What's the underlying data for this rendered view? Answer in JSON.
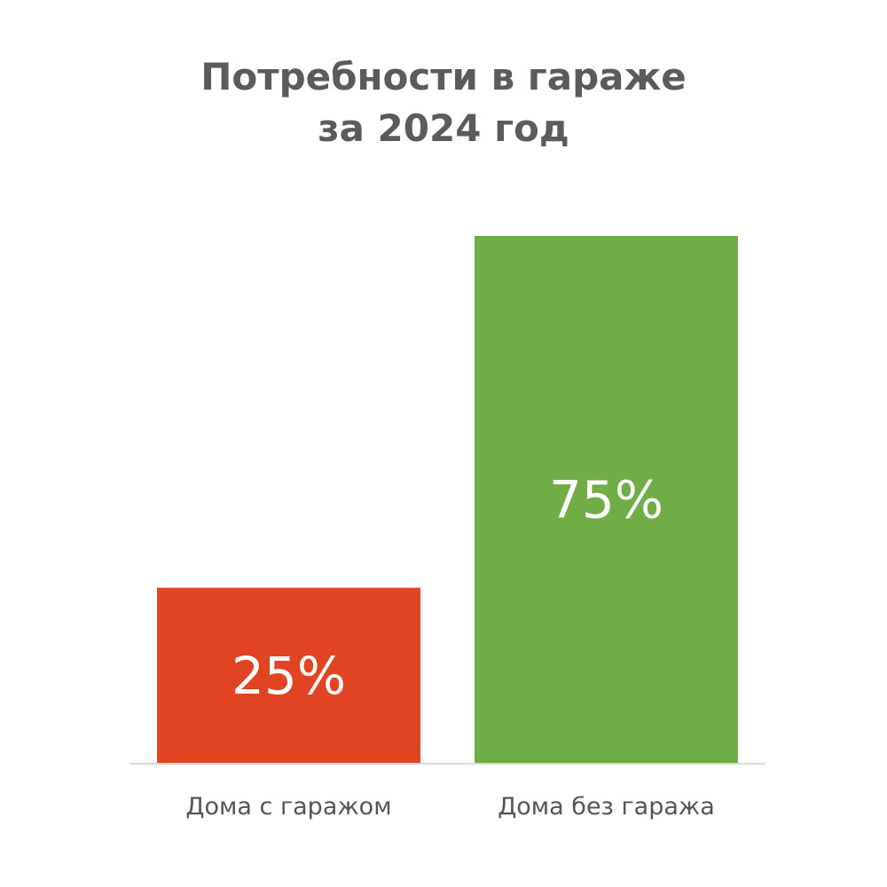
{
  "chart_data": {
    "type": "bar",
    "title": "Потребности в гараже за 2024 год",
    "title_lines": [
      "Потребности в гараже",
      "за 2024 год"
    ],
    "categories": [
      "Дома с гаражом",
      "Дома без гаража"
    ],
    "values": [
      25,
      75
    ],
    "data_labels": [
      "25%",
      "75%"
    ],
    "colors": [
      "#e04423",
      "#70ad47"
    ],
    "ylim": [
      0,
      75
    ],
    "grid": false,
    "legend": "none"
  }
}
